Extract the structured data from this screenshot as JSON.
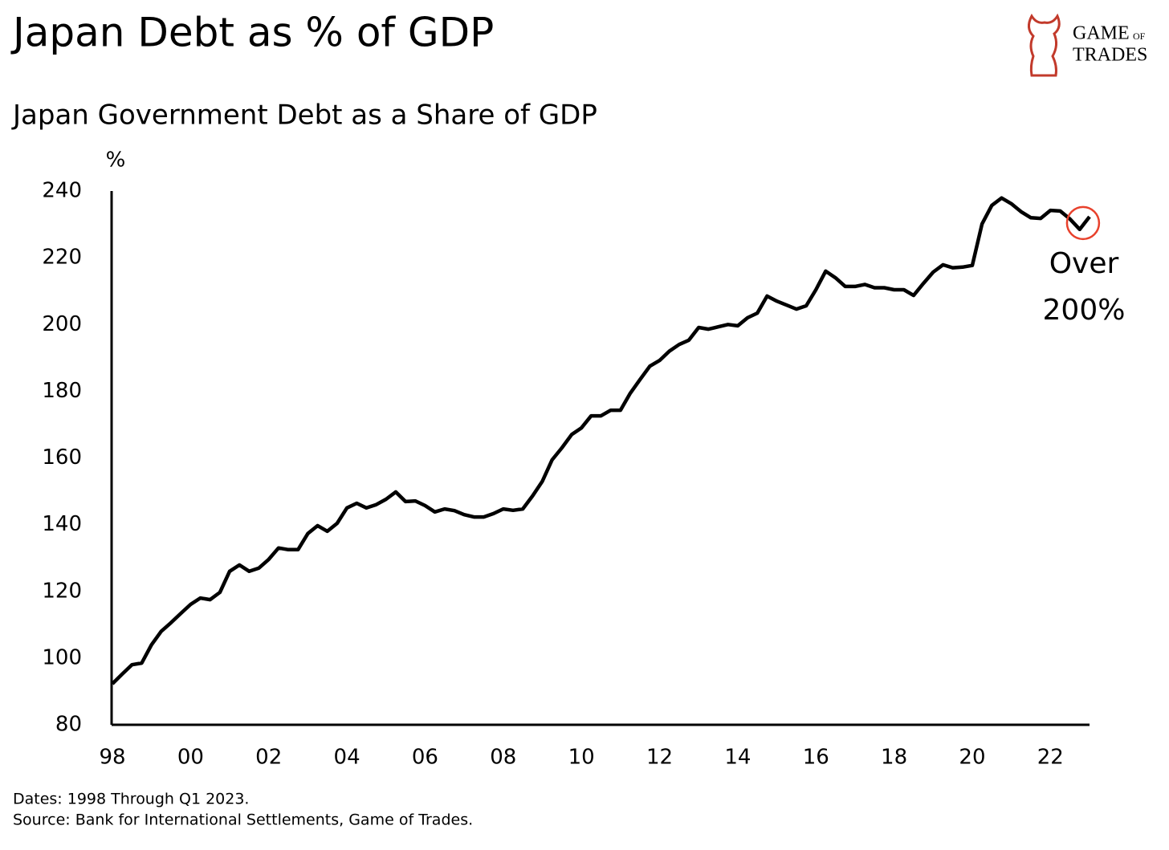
{
  "chart_data": {
    "type": "line",
    "title": "Japan Debt as % of GDP",
    "subtitle": "Japan Government Debt as a Share of GDP",
    "y_unit": "%",
    "annotation": [
      "Over",
      "200%"
    ],
    "footnotes": [
      "Dates: 1998 Through Q1 2023.",
      "Source: Bank for International Settlements, Game of Trades."
    ],
    "logo": {
      "line1": "GAME",
      "small": "OF",
      "line2": "TRADES"
    },
    "categories": [
      "98",
      null,
      null,
      null,
      null,
      null,
      null,
      null,
      "00",
      null,
      null,
      null,
      null,
      null,
      null,
      null,
      "02",
      null,
      null,
      null,
      null,
      null,
      null,
      null,
      "04",
      null,
      null,
      null,
      null,
      null,
      null,
      null,
      "06",
      null,
      null,
      null,
      null,
      null,
      null,
      null,
      "08",
      null,
      null,
      null,
      null,
      null,
      null,
      null,
      "10",
      null,
      null,
      null,
      null,
      null,
      null,
      null,
      "12",
      null,
      null,
      null,
      null,
      null,
      null,
      null,
      "14",
      null,
      null,
      null,
      null,
      null,
      null,
      null,
      "16",
      null,
      null,
      null,
      null,
      null,
      null,
      null,
      "18",
      null,
      null,
      null,
      null,
      null,
      null,
      null,
      "20",
      null,
      null,
      null,
      null,
      null,
      null,
      null,
      "22",
      null,
      null,
      null,
      null
    ],
    "series": [
      {
        "name": "Japan Government Debt",
        "color": "#000000",
        "values": [
          92.3,
          95.2,
          98,
          98.5,
          104,
          108,
          110.6,
          113.4,
          116.1,
          118,
          117.5,
          119.7,
          126,
          127.9,
          126,
          127,
          129.6,
          133,
          132.5,
          132.5,
          137.3,
          139.7,
          138,
          140.4,
          145,
          146.4,
          145,
          146,
          147.6,
          149.8,
          146.9,
          147.1,
          145.7,
          143.8,
          144.7,
          144.2,
          143,
          142.3,
          142.3,
          143.3,
          144.7,
          144.3,
          144.7,
          148.6,
          153,
          159.4,
          163,
          167,
          169,
          172.6,
          172.6,
          174.3,
          174.3,
          179.4,
          183.5,
          187.5,
          189.2,
          192,
          194,
          195.3,
          199.1,
          198.6,
          199.3,
          200,
          199.6,
          202,
          203.4,
          208.5,
          207,
          205.8,
          204.6,
          205.6,
          210.4,
          216,
          214,
          211.4,
          211.4,
          212,
          211,
          211,
          210.4,
          210.4,
          208.7,
          212.3,
          215.7,
          217.9,
          217,
          217.2,
          217.7,
          230.1,
          235.7,
          237.9,
          236.2,
          233.8,
          232,
          231.8,
          234.2,
          234,
          231.6,
          228.5,
          232.3
        ]
      }
    ],
    "ylim": [
      80,
      240
    ],
    "yticks": [
      80,
      100,
      120,
      140,
      160,
      180,
      200,
      220,
      240
    ],
    "grid": false,
    "highlight_color": "#e8412c"
  }
}
